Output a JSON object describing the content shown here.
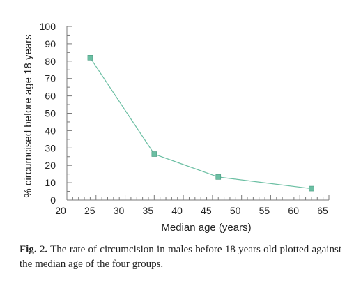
{
  "chart_data": {
    "type": "line",
    "xlabel": "Median age (years)",
    "ylabel": "% circumcised before age 18 years",
    "xlim": [
      20,
      65
    ],
    "ylim": [
      0,
      100
    ],
    "xticks": [
      20,
      25,
      30,
      35,
      40,
      45,
      50,
      55,
      60,
      65
    ],
    "yticks": [
      0,
      10,
      20,
      30,
      40,
      50,
      60,
      70,
      80,
      90,
      100
    ],
    "grid": false,
    "series": [
      {
        "x": [
          24,
          35,
          46,
          62
        ],
        "y": [
          82,
          26.5,
          13.3,
          6.6
        ],
        "color": "#6bbfa3",
        "marker": "square"
      }
    ]
  },
  "caption": {
    "label": "Fig. 2.",
    "text": "The rate of circumcision in males before 18 years old plotted against the median age of the four groups."
  }
}
